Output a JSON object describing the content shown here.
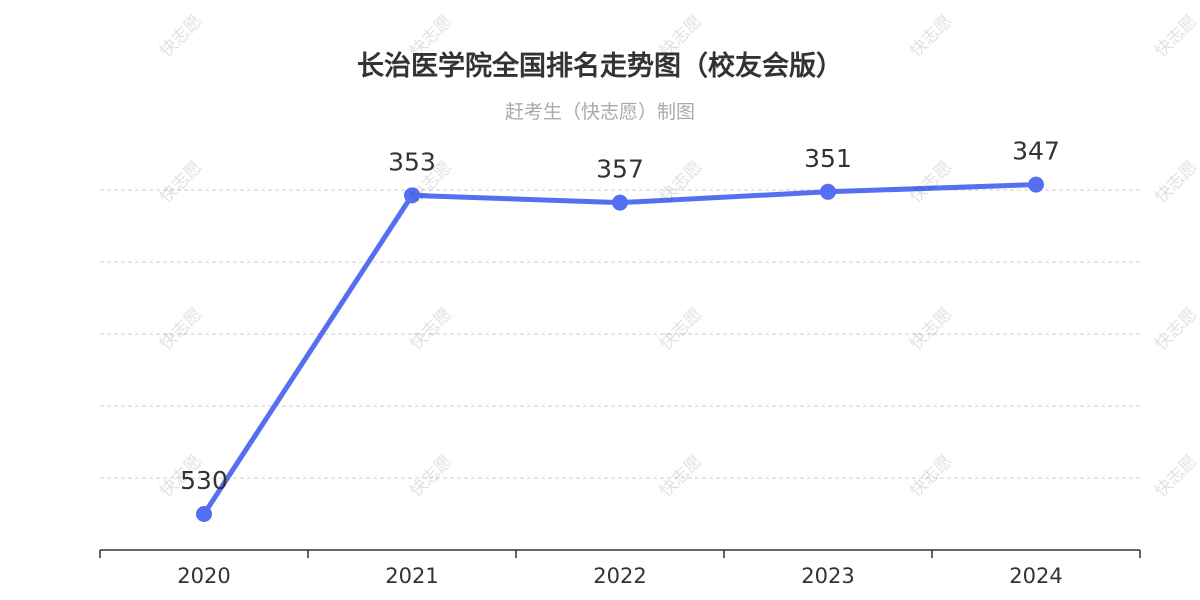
{
  "chart_data": {
    "type": "line",
    "title": "长治医学院全国排名走势图（校友会版）",
    "subtitle": "赶考生（快志愿）制图",
    "categories": [
      "2020",
      "2021",
      "2022",
      "2023",
      "2024"
    ],
    "series": [
      {
        "values": [
          530,
          353,
          357,
          351,
          347
        ]
      }
    ],
    "ylim": [
      550,
      350
    ],
    "y_inverted": true,
    "grid": true,
    "line_color": "#5470f0"
  },
  "watermark": {
    "text": "快志愿"
  }
}
